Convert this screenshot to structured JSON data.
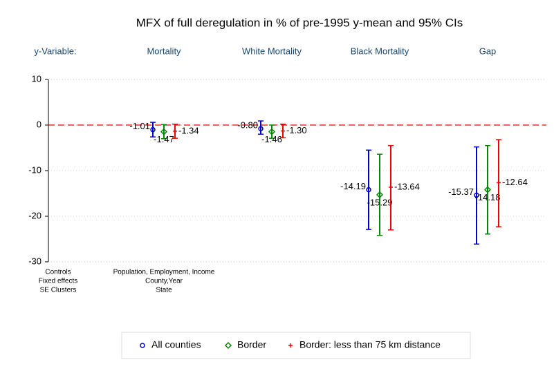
{
  "chart_data": {
    "type": "coefplot",
    "title": "MFX of full deregulation in % of pre-1995 y-mean and 95% CIs",
    "header_label": "y-Variable:",
    "categories": [
      "Mortality",
      "White Mortality",
      "Black Mortality",
      "Gap"
    ],
    "series": [
      {
        "name": "All counties",
        "color": "#0000cc",
        "marker": "circle",
        "values": [
          -1.01,
          -0.8,
          -14.19,
          -15.37
        ],
        "value_labels": [
          "-1.01",
          "-0.80",
          "-14.19",
          "-15.37"
        ],
        "lower": [
          -2.6,
          -2.0,
          -22.9,
          -26.1
        ],
        "upper": [
          0.6,
          0.9,
          -5.5,
          -4.8
        ]
      },
      {
        "name": "Border",
        "color": "#008800",
        "marker": "diamond",
        "values": [
          -1.47,
          -1.46,
          -15.29,
          -14.18
        ],
        "value_labels": [
          "-1.47",
          "-1.46",
          "-15.29",
          "-14.18"
        ],
        "lower": [
          -3.0,
          -2.9,
          -24.2,
          -23.9
        ],
        "upper": [
          0.1,
          0.0,
          -6.4,
          -4.5
        ]
      },
      {
        "name": "Border: less than 75 km distance",
        "color": "#ee0000",
        "marker": "plus",
        "values": [
          -1.34,
          -1.3,
          -13.64,
          -12.64
        ],
        "value_labels": [
          "-1.34",
          "-1.30",
          "-13.64",
          "-12.64"
        ],
        "lower": [
          -2.9,
          -2.8,
          -23.0,
          -22.3
        ],
        "upper": [
          0.2,
          0.2,
          -4.5,
          -3.2
        ]
      }
    ],
    "ylim": [
      -30,
      10
    ],
    "yticks": [
      -30,
      -20,
      -10,
      0,
      10
    ],
    "yline": 0,
    "grid": true,
    "notes": [
      {
        "label": "Controls",
        "value": "Population, Employment, Income"
      },
      {
        "label": "Fixed effects",
        "value": "County,Year"
      },
      {
        "label": "SE Clusters",
        "value": "State"
      }
    ],
    "legend": "bottom"
  }
}
